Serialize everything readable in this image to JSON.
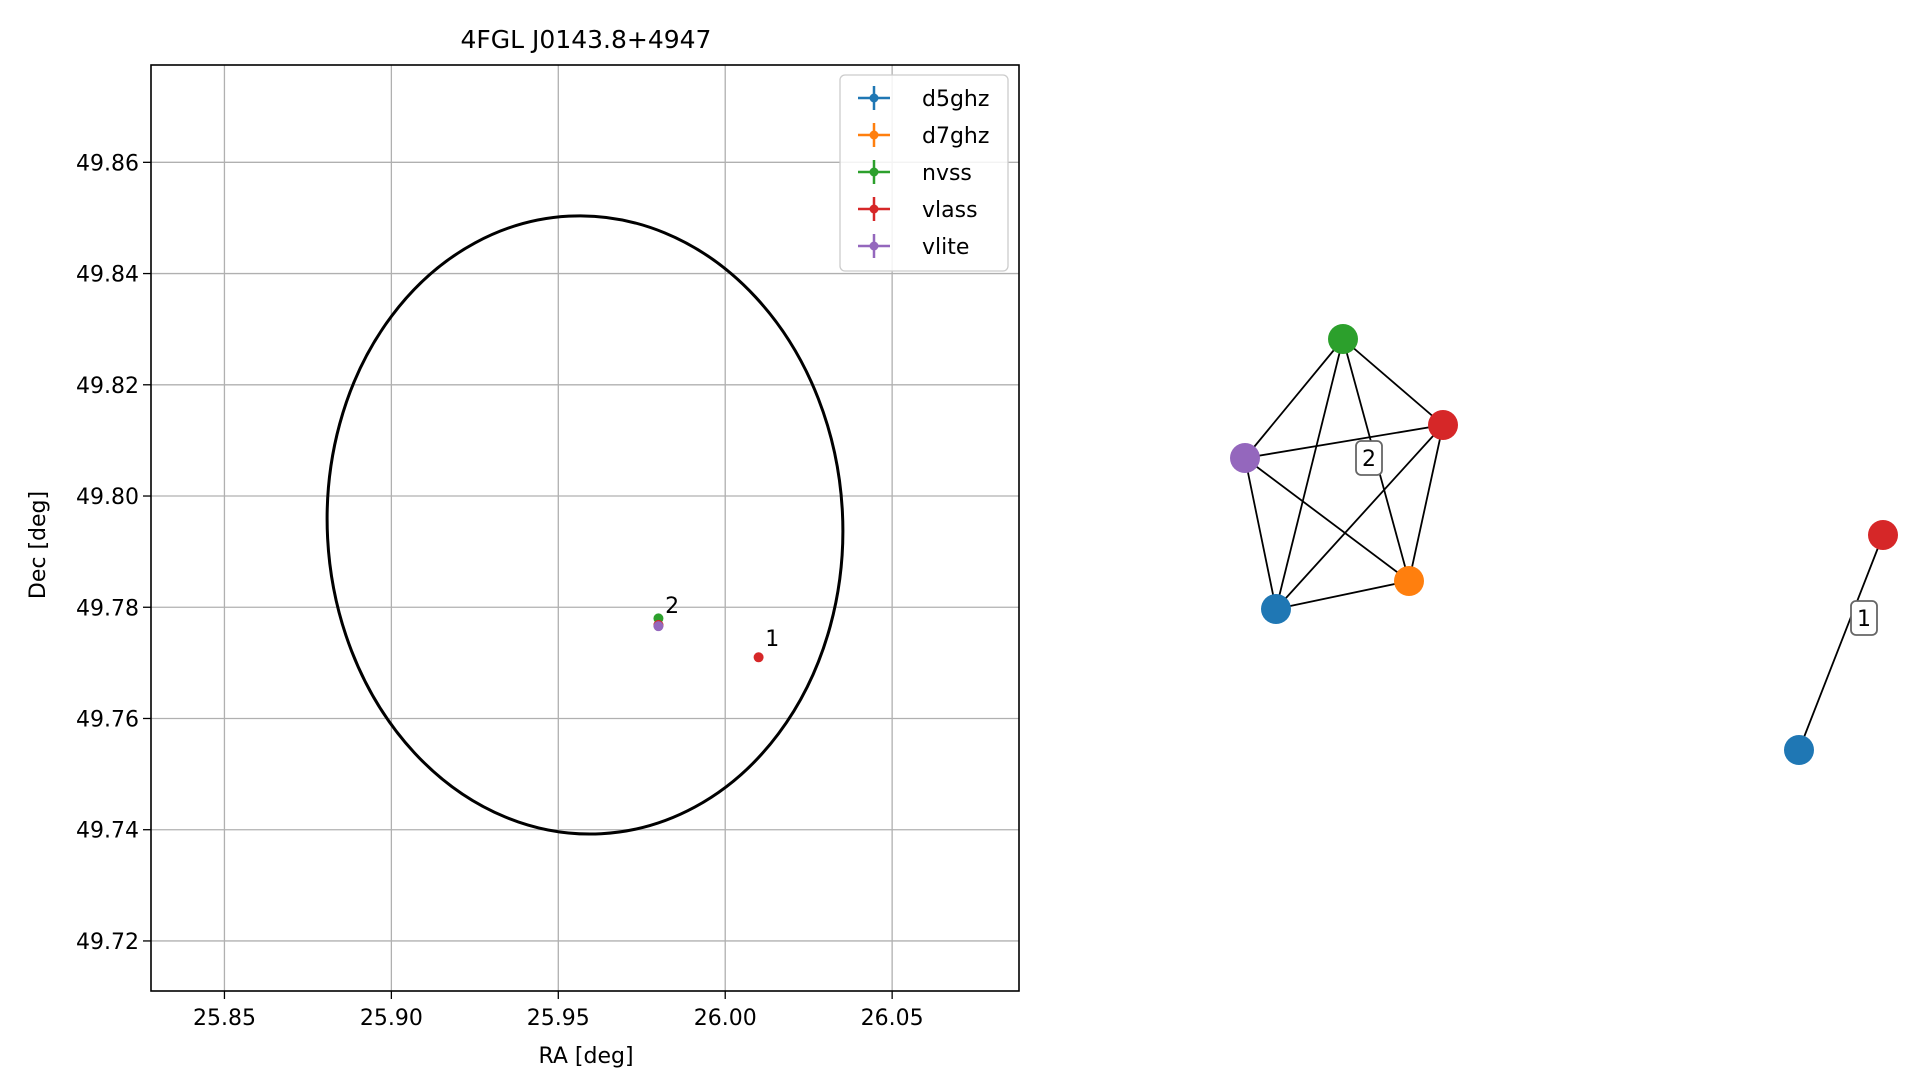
{
  "chart_data": [
    {
      "type": "scatter",
      "title": "4FGL J0143.8+4947",
      "xlabel": "RA [deg]",
      "ylabel": "Dec [deg]",
      "xlim": [
        25.828,
        26.088
      ],
      "ylim": [
        49.711,
        49.8775
      ],
      "xticks": [
        25.85,
        25.9,
        25.95,
        26.0,
        26.05
      ],
      "xtick_labels": [
        "25.85",
        "25.90",
        "25.95",
        "26.00",
        "26.05"
      ],
      "yticks": [
        49.72,
        49.74,
        49.76,
        49.78,
        49.8,
        49.82,
        49.84,
        49.86
      ],
      "ytick_labels": [
        "49.72",
        "49.74",
        "49.76",
        "49.78",
        "49.80",
        "49.82",
        "49.84",
        "49.86"
      ],
      "grid": true,
      "legend_position": "top-right",
      "series": [
        {
          "name": "d5ghz",
          "color": "#1f77b4",
          "points": [
            [
              25.98,
              49.7768
            ]
          ]
        },
        {
          "name": "d7ghz",
          "color": "#ff7f0e",
          "points": [
            [
              25.98,
              49.7768
            ]
          ]
        },
        {
          "name": "nvss",
          "color": "#2ca02c",
          "points": [
            [
              25.98,
              49.778
            ]
          ]
        },
        {
          "name": "vlass",
          "color": "#d62728",
          "points": [
            [
              25.98,
              49.7768
            ],
            [
              26.01,
              49.771
            ]
          ]
        },
        {
          "name": "vlite",
          "color": "#9467bd",
          "points": [
            [
              25.98,
              49.7766
            ]
          ]
        }
      ],
      "ellipse": {
        "center_ra": 25.958,
        "center_dec": 49.7948,
        "semi_major_dec": 0.0556,
        "semi_minor_ra": 0.0772,
        "color": "#000000"
      },
      "annotations": [
        {
          "text": "2",
          "ra": 25.982,
          "dec": 49.779
        },
        {
          "text": "1",
          "ra": 26.012,
          "dec": 49.773
        }
      ]
    },
    {
      "type": "network",
      "groups": [
        {
          "label": "2",
          "nodes": [
            "nvss",
            "vlass",
            "vlite",
            "d7ghz",
            "d5ghz"
          ],
          "edges": [
            [
              "nvss",
              "vlite"
            ],
            [
              "nvss",
              "vlass"
            ],
            [
              "nvss",
              "d5ghz"
            ],
            [
              "nvss",
              "d7ghz"
            ],
            [
              "vlite",
              "vlass"
            ],
            [
              "vlite",
              "d7ghz"
            ],
            [
              "vlite",
              "d5ghz"
            ],
            [
              "vlass",
              "d7ghz"
            ],
            [
              "vlass",
              "d5ghz"
            ],
            [
              "d7ghz",
              "d5ghz"
            ]
          ]
        },
        {
          "label": "1",
          "nodes": [
            "vlass",
            "d5ghz"
          ],
          "edges": [
            [
              "vlass",
              "d5ghz"
            ]
          ]
        }
      ],
      "node_colors": {
        "d5ghz": "#1f77b4",
        "d7ghz": "#ff7f0e",
        "nvss": "#2ca02c",
        "vlass": "#d62728",
        "vlite": "#9467bd"
      }
    }
  ]
}
